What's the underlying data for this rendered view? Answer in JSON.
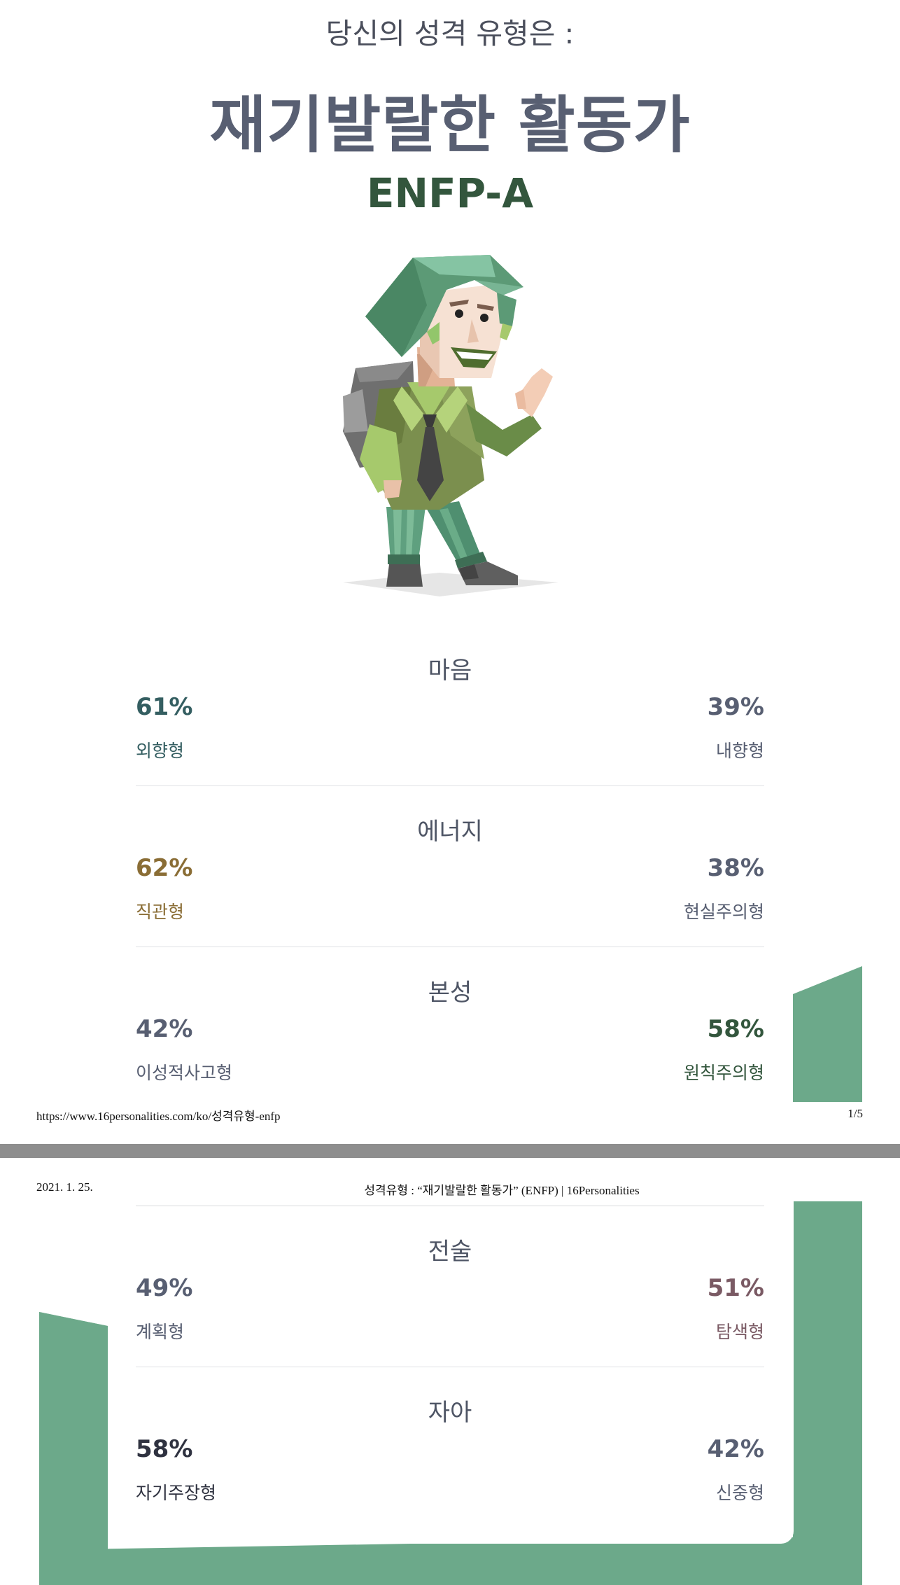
{
  "page1": {
    "intro": "당신의 성격 유형은 :",
    "type_name": "재기발랄한 활동가",
    "type_code": "ENFP-A",
    "footer_url": "https://www.16personalities.com/ko/성격유형-enfp",
    "footer_page": "1/5"
  },
  "page2": {
    "date": "2021. 1. 25.",
    "doc_title": "성격유형 : “재기발랄한 활동가” (ENFP) | 16Personalities"
  },
  "traits": [
    {
      "title": "마음",
      "left_pct": "61%",
      "left_name": "외향형",
      "right_pct": "39%",
      "right_name": "내향형",
      "left_color": "#345e61",
      "right_color": "#585f72"
    },
    {
      "title": "에너지",
      "left_pct": "62%",
      "left_name": "직관형",
      "right_pct": "38%",
      "right_name": "현실주의형",
      "left_color": "#8a6d35",
      "right_color": "#585f72"
    },
    {
      "title": "본성",
      "left_pct": "42%",
      "left_name": "이성적사고형",
      "right_pct": "58%",
      "right_name": "원칙주의형",
      "left_color": "#585f72",
      "right_color": "#33563d"
    },
    {
      "title": "전술",
      "left_pct": "49%",
      "left_name": "계획형",
      "right_pct": "51%",
      "right_name": "탐색형",
      "left_color": "#585f72",
      "right_color": "#7a5a64"
    },
    {
      "title": "자아",
      "left_pct": "58%",
      "left_name": "자기주장형",
      "right_pct": "42%",
      "right_name": "신중형",
      "left_color": "#2f3240",
      "right_color": "#585f72"
    }
  ],
  "colors": {
    "accent_green": "#6ca98a",
    "page_gap": "#8e8e8e"
  },
  "icons": {
    "illustration": "campaigner-character-illustration"
  }
}
